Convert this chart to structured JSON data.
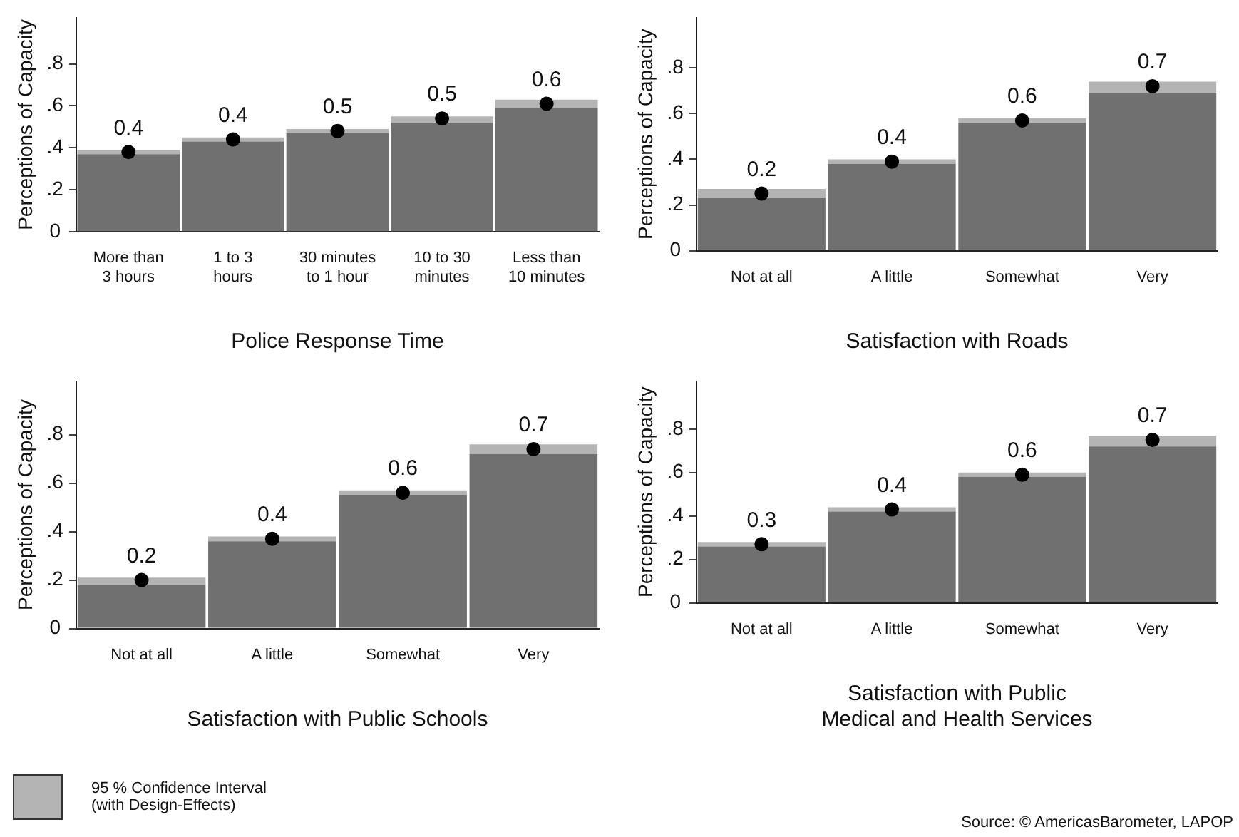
{
  "chart_data": [
    {
      "type": "bar",
      "xlabel": "Police Response Time",
      "ylabel": "Perceptions of Capacity",
      "categories": [
        "More than 3 hours",
        "1 to 3 hours",
        "30 minutes to 1 hour",
        "10 to 30 minutes",
        "Less than 10 minutes"
      ],
      "series": [
        {
          "type": "bar",
          "color": "#707070",
          "values": [
            0.37,
            0.43,
            0.47,
            0.52,
            0.59
          ]
        },
        {
          "type": "bar",
          "color": "#b4b4b4",
          "values": [
            0.02,
            0.02,
            0.02,
            0.03,
            0.04
          ]
        },
        {
          "type": "scatter",
          "color": "#000000",
          "x": [
            "More than 3 hours",
            "1 to 3 hours",
            "30 minutes to 1 hour",
            "10 to 30 minutes",
            "Less than 10 minutes"
          ],
          "values": [
            0.38,
            0.44,
            0.48,
            0.54,
            0.61
          ],
          "value_labels": [
            "0.4",
            "0.4",
            "0.5",
            "0.5",
            "0.6"
          ]
        }
      ],
      "marker": "circle",
      "stacked": true,
      "ylim": [
        0,
        1.02
      ],
      "yticks": [
        {
          "value": 0,
          "label": "0"
        },
        {
          "value": 0.2,
          "label": ".2"
        },
        {
          "value": 0.4,
          "label": ".4"
        },
        {
          "value": 0.6,
          "label": ".6"
        },
        {
          "value": 0.8,
          "label": ".8"
        }
      ]
    },
    {
      "type": "bar",
      "xlabel": "Satisfaction with Roads",
      "ylabel": "Perceptions of Capacity",
      "categories": [
        "Not at all",
        "A little",
        "Somewhat",
        "Very"
      ],
      "series": [
        {
          "type": "bar",
          "color": "#707070",
          "values": [
            0.23,
            0.38,
            0.56,
            0.69
          ]
        },
        {
          "type": "bar",
          "color": "#b4b4b4",
          "values": [
            0.04,
            0.02,
            0.02,
            0.05
          ]
        },
        {
          "type": "scatter",
          "color": "#000000",
          "x": [
            "Not at all",
            "A little",
            "Somewhat",
            "Very"
          ],
          "values": [
            0.25,
            0.39,
            0.57,
            0.72
          ],
          "value_labels": [
            "0.2",
            "0.4",
            "0.6",
            "0.7"
          ]
        }
      ],
      "marker": "circle",
      "stacked": true,
      "ylim": [
        0,
        1.02
      ],
      "yticks": [
        {
          "value": 0,
          "label": "0"
        },
        {
          "value": 0.2,
          "label": ".2"
        },
        {
          "value": 0.4,
          "label": ".4"
        },
        {
          "value": 0.6,
          "label": ".6"
        },
        {
          "value": 0.8,
          "label": ".8"
        }
      ]
    },
    {
      "type": "bar",
      "xlabel": "Satisfaction with Public Schools",
      "ylabel": "Perceptions of Capacity",
      "categories": [
        "Not at all",
        "A little",
        "Somewhat",
        "Very"
      ],
      "series": [
        {
          "type": "bar",
          "color": "#707070",
          "values": [
            0.18,
            0.36,
            0.55,
            0.72
          ]
        },
        {
          "type": "bar",
          "color": "#b4b4b4",
          "values": [
            0.03,
            0.02,
            0.02,
            0.04
          ]
        },
        {
          "type": "scatter",
          "color": "#000000",
          "x": [
            "Not at all",
            "A little",
            "Somewhat",
            "Very"
          ],
          "values": [
            0.2,
            0.37,
            0.56,
            0.74
          ],
          "value_labels": [
            "0.2",
            "0.4",
            "0.6",
            "0.7"
          ]
        }
      ],
      "marker": "circle",
      "stacked": true,
      "ylim": [
        0,
        1.02
      ],
      "yticks": [
        {
          "value": 0,
          "label": "0"
        },
        {
          "value": 0.2,
          "label": ".2"
        },
        {
          "value": 0.4,
          "label": ".4"
        },
        {
          "value": 0.6,
          "label": ".6"
        },
        {
          "value": 0.8,
          "label": ".8"
        }
      ]
    },
    {
      "type": "bar",
      "xlabel": "Satisfaction with Public\nMedical and Health Services",
      "ylabel": "Perceptions of Capacity",
      "categories": [
        "Not at all",
        "A little",
        "Somewhat",
        "Very"
      ],
      "series": [
        {
          "type": "bar",
          "color": "#707070",
          "values": [
            0.26,
            0.42,
            0.58,
            0.72
          ]
        },
        {
          "type": "bar",
          "name": "95 % Confidence Interval\n(with Design-Effects)",
          "color": "#b4b4b4",
          "values": [
            0.02,
            0.02,
            0.02,
            0.05
          ]
        },
        {
          "type": "scatter",
          "color": "#000000",
          "x": [
            "Not at all",
            "A little",
            "Somewhat",
            "Very"
          ],
          "values": [
            0.27,
            0.43,
            0.59,
            0.75
          ],
          "value_labels": [
            "0.3",
            "0.4",
            "0.6",
            "0.7"
          ]
        }
      ],
      "marker": "circle",
      "stacked": true,
      "legend": "bottom left",
      "ylim": [
        0,
        1.02
      ],
      "yticks": [
        {
          "value": 0,
          "label": "0"
        },
        {
          "value": 0.2,
          "label": ".2"
        },
        {
          "value": 0.4,
          "label": ".4"
        },
        {
          "value": 0.6,
          "label": ".6"
        },
        {
          "value": 0.8,
          "label": ".8"
        }
      ],
      "annotations": [
        "Source: © AmericasBarometer, LAPOP"
      ]
    }
  ]
}
